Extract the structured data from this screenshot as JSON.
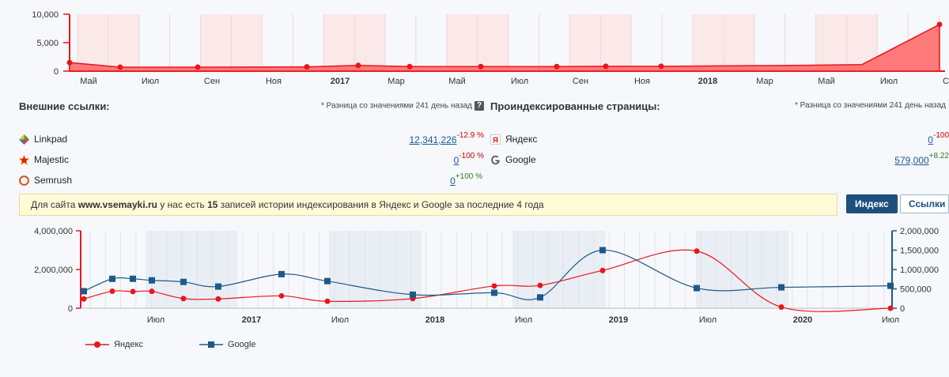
{
  "top_chart": {
    "chart_data": {
      "type": "area",
      "y_ticks": [
        "10,000",
        "5,000",
        "0"
      ],
      "x_labels": [
        "Май",
        "Июл",
        "Сен",
        "Ноя",
        "2017",
        "Мар",
        "Май",
        "Июл",
        "Сен",
        "Ноя",
        "2018",
        "Мар",
        "Май",
        "Июл",
        "С"
      ],
      "ylim": [
        0,
        10000
      ],
      "values": [
        1500,
        700,
        700,
        750,
        1000,
        800,
        800,
        800,
        850,
        850,
        1000,
        1150,
        8200
      ],
      "color": "#e8161c"
    }
  },
  "external_links": {
    "title": "Внешние ссылки:",
    "note": "* Разница со значениями 241 день назад",
    "help": "?",
    "rows": [
      {
        "name": "Linkpad",
        "value": "12,341,226",
        "delta": "-12.9 %",
        "delta_sign": "neg"
      },
      {
        "name": "Majestic",
        "value": "0",
        "delta": "-100 %",
        "delta_sign": "neg"
      },
      {
        "name": "Semrush",
        "value": "0",
        "delta": "+100 %",
        "delta_sign": "pos"
      }
    ]
  },
  "indexed_pages": {
    "title": "Проиндексированные страницы:",
    "note": "* Разница со значениями 241 день назад",
    "rows": [
      {
        "name": "Яндекс",
        "value": "0",
        "delta": "-100",
        "delta_sign": "neg"
      },
      {
        "name": "Google",
        "value": "579,000",
        "delta": "+8.22",
        "delta_sign": "pos"
      }
    ]
  },
  "banner": {
    "prefix": "Для сайта ",
    "site": "www.vsemayki.ru",
    "middle": " у нас есть ",
    "count": "15",
    "suffix": " записей истории индексирования в Яндекс и Google за последние 4 года"
  },
  "buttons": {
    "index": "Индекс",
    "links": "Ссылки"
  },
  "bottom_chart": {
    "chart_data": {
      "type": "line",
      "left_ticks": [
        "4,000,000",
        "2,000,000",
        "0"
      ],
      "right_ticks": [
        "2,000,000",
        "1,500,000",
        "1,000,000",
        "500,000",
        "0"
      ],
      "x_labels": [
        "Июл",
        "2017",
        "Июл",
        "2018",
        "Июл",
        "2019",
        "Июл",
        "2020",
        "Июл"
      ],
      "left_ylim": [
        0,
        4000000
      ],
      "right_ylim": [
        0,
        2000000
      ],
      "series": [
        {
          "name": "Яндекс",
          "color": "#e8161c",
          "values": [
            480000,
            880000,
            860000,
            870000,
            500000,
            480000,
            640000,
            360000,
            500000,
            1150000,
            1180000,
            1950000,
            2950000,
            60000,
            0
          ]
        },
        {
          "name": "Google",
          "color": "#1c5a8a",
          "values": [
            440000,
            760000,
            760000,
            720000,
            680000,
            560000,
            880000,
            700000,
            350000,
            400000,
            280000,
            1500000,
            520000,
            540000,
            579000
          ]
        }
      ]
    }
  }
}
